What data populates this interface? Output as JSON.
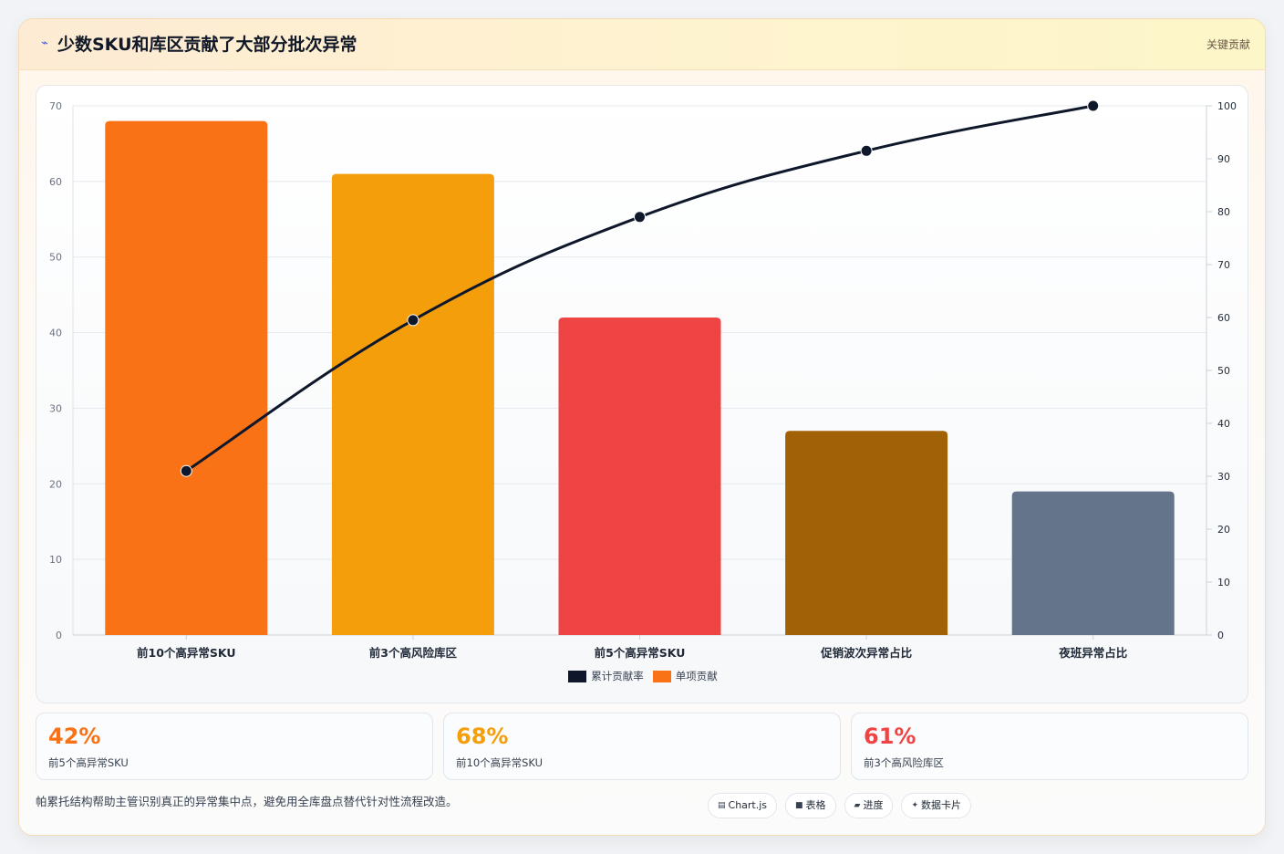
{
  "header": {
    "icon": "lightning-icon",
    "title": "少数SKU和库区贡献了大部分批次异常",
    "tag": "关键贡献"
  },
  "chart_data": {
    "type": "bar",
    "categories": [
      "前10个高异常SKU",
      "前3个高风险库区",
      "前5个高异常SKU",
      "促销波次异常占比",
      "夜班异常占比"
    ],
    "series": [
      {
        "name": "单项贡献",
        "type": "bar",
        "axis": "left",
        "values": [
          68,
          61,
          42,
          27,
          19
        ],
        "colors": [
          "#f97316",
          "#f59e0b",
          "#ef4444",
          "#a16207",
          "#64748b"
        ]
      },
      {
        "name": "累计贡献率",
        "type": "line",
        "axis": "right",
        "values": [
          31,
          59.5,
          79,
          91.5,
          100
        ],
        "color": "#0f172a"
      }
    ],
    "y_left": {
      "ylim": [
        0,
        70
      ],
      "ticks": [
        0,
        10,
        20,
        30,
        40,
        50,
        60,
        70
      ]
    },
    "y_right": {
      "ylim": [
        0,
        100
      ],
      "ticks": [
        0,
        10,
        20,
        30,
        40,
        50,
        60,
        70,
        80,
        90,
        100
      ]
    },
    "grid": true,
    "legend": {
      "position": "bottom",
      "items": [
        {
          "label": "累计贡献率",
          "color": "#0f172a"
        },
        {
          "label": "单项贡献",
          "color": "#f97316"
        }
      ]
    }
  },
  "stats": [
    {
      "value": "42%",
      "label": "前5个高异常SKU",
      "color": "#f97316"
    },
    {
      "value": "68%",
      "label": "前10个高异常SKU",
      "color": "#f59e0b"
    },
    {
      "value": "61%",
      "label": "前3个高风险库区",
      "color": "#ef4444"
    }
  ],
  "footer": {
    "note": "帕累托结构帮助主管识别真正的异常集中点，避免用全库盘点替代针对性流程改造。",
    "chips": [
      {
        "icon": "chart-icon",
        "glyph": "▤",
        "label": "Chart.js"
      },
      {
        "icon": "table-icon",
        "glyph": "■",
        "label": "表格"
      },
      {
        "icon": "progress-icon",
        "glyph": "▰",
        "label": "进度"
      },
      {
        "icon": "card-icon",
        "glyph": "✦",
        "label": "数据卡片"
      }
    ]
  }
}
